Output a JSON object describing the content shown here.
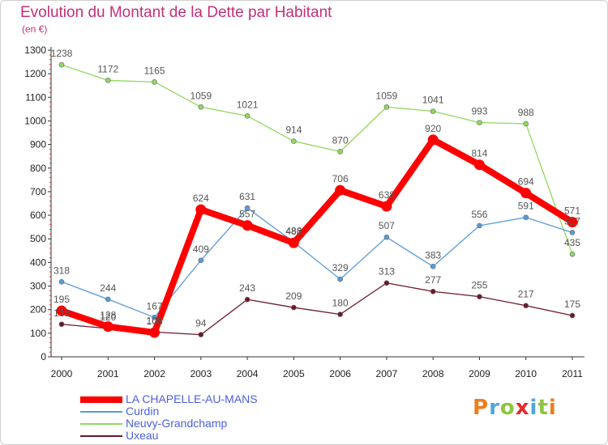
{
  "chart_data": {
    "type": "line",
    "title": "Evolution du Montant de la Dette par Habitant",
    "subtitle": "(en €)",
    "categories": [
      "2000",
      "2001",
      "2002",
      "2003",
      "2004",
      "2005",
      "2006",
      "2007",
      "2008",
      "2009",
      "2010",
      "2011"
    ],
    "ylim": [
      0,
      1300
    ],
    "yticks": [
      0,
      100,
      200,
      300,
      400,
      500,
      600,
      700,
      800,
      900,
      1000,
      1100,
      1200,
      1300
    ],
    "grid": false,
    "legend_position": "bottom-left",
    "series": [
      {
        "name": "Neuvy-Grandchamp",
        "color": "#90d860",
        "values": [
          1238,
          1172,
          1165,
          1059,
          1021,
          914,
          870,
          1059,
          1041,
          993,
          988,
          435
        ]
      },
      {
        "name": "Curdin",
        "color": "#5b9bd5",
        "values": [
          318,
          244,
          167,
          409,
          631,
          486,
          329,
          507,
          383,
          556,
          591,
          527
        ]
      },
      {
        "name": "Uxeau",
        "color": "#6b1a2a",
        "values": [
          138,
          120,
          105,
          94,
          243,
          209,
          180,
          313,
          277,
          255,
          217,
          175
        ]
      },
      {
        "name": "LA CHAPELLE-AU-MANS",
        "color": "#ff0000",
        "highlight": true,
        "values": [
          195,
          128,
          103,
          624,
          557,
          483,
          706,
          638,
          920,
          814,
          694,
          571
        ]
      }
    ],
    "labels": {
      "Neuvy-Grandchamp": [
        "1238",
        "1172",
        "1165",
        "1059",
        "1021",
        "914",
        "870",
        "1059",
        "1041",
        "993",
        "988",
        "435"
      ],
      "Curdin": [
        "318",
        "244",
        "167",
        "409",
        "631",
        "486",
        "329",
        "507",
        "383",
        "556",
        "591",
        "527"
      ],
      "Uxeau": [
        "138",
        "120",
        "105",
        "94",
        "243",
        "209",
        "180",
        "313",
        "277",
        "255",
        "217",
        "175"
      ],
      "LA CHAPELLE-AU-MANS": [
        "195",
        "128",
        "103",
        "624",
        "557",
        "483",
        "706",
        "638",
        "920",
        "814",
        "694",
        "571"
      ]
    }
  },
  "legend": {
    "items": [
      {
        "name": "LA CHAPELLE-AU-MANS",
        "color": "#ff0000"
      },
      {
        "name": "Curdin",
        "color": "#5b9bd5"
      },
      {
        "name": "Neuvy-Grandchamp",
        "color": "#90d860"
      },
      {
        "name": "Uxeau",
        "color": "#6b1a2a"
      }
    ]
  },
  "logo": {
    "text": "Proxiti",
    "colors": [
      "#f07d1a",
      "#4fa6dd",
      "#8dc63f",
      "#e4282b",
      "#4fa6dd",
      "#8dc63f",
      "#f07d1a"
    ]
  }
}
